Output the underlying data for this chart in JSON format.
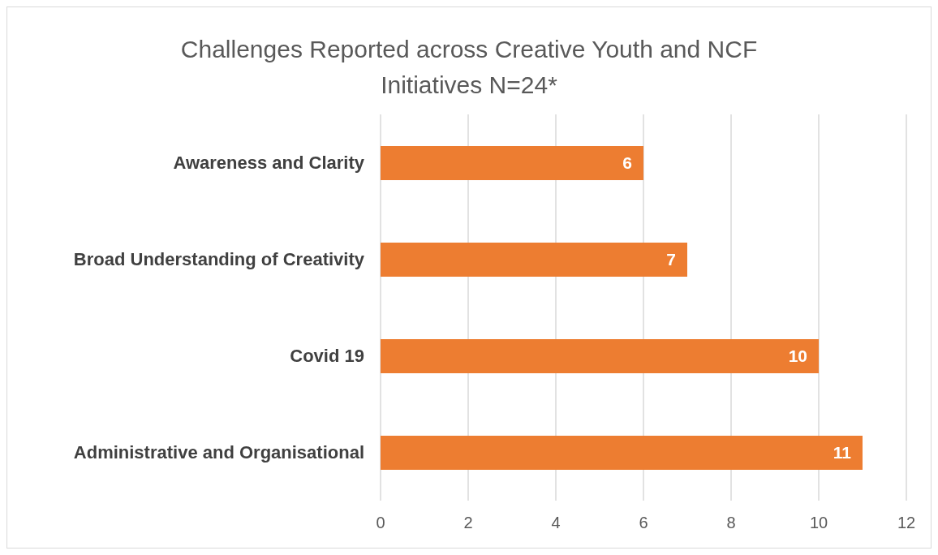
{
  "chart_data": {
    "type": "bar",
    "orientation": "horizontal",
    "title": "Challenges Reported across Creative Youth and NCF Initiatives N=24*",
    "categories": [
      "Awareness and Clarity",
      "Broad Understanding of Creativity",
      "Covid 19",
      "Administrative and Organisational"
    ],
    "values": [
      6,
      7,
      10,
      11
    ],
    "color": "#ed7d31",
    "xlim": [
      0,
      12
    ],
    "xticks": [
      0,
      2,
      4,
      6,
      8,
      10,
      12
    ],
    "grid": "x",
    "data_labels": true
  }
}
